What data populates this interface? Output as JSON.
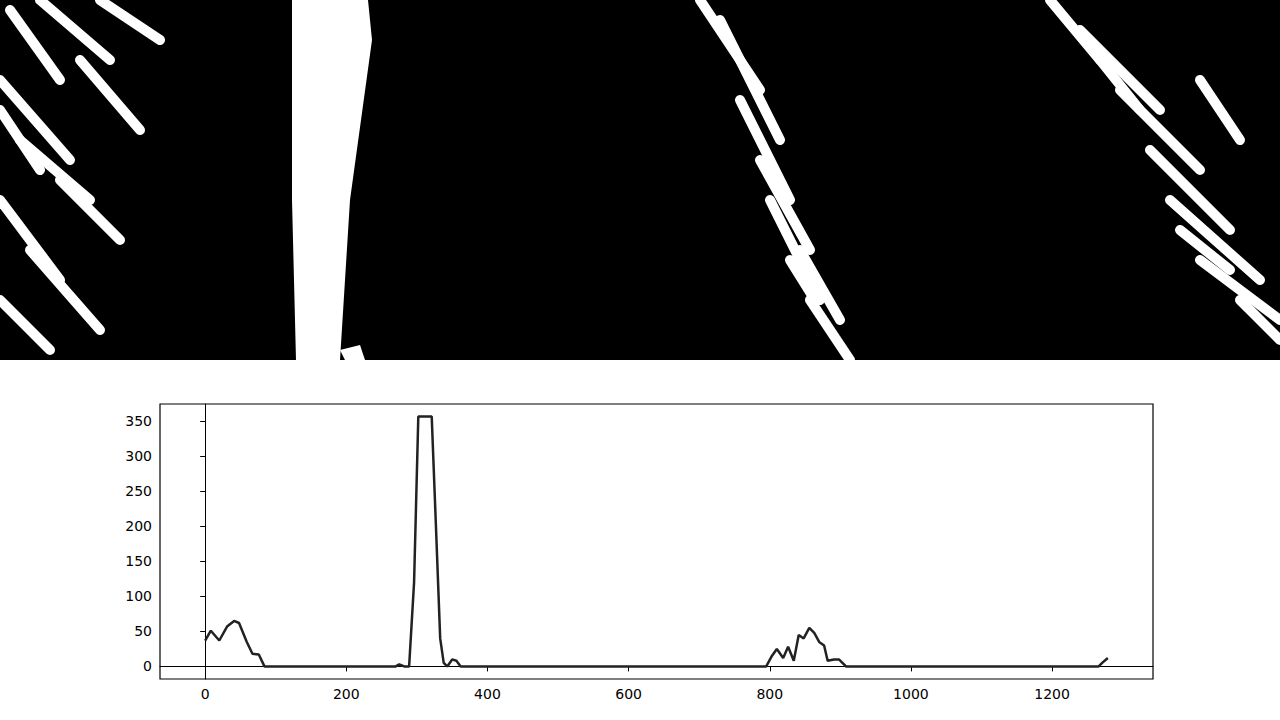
{
  "chart_data": {
    "type": "line",
    "color": "#222222",
    "x": [
      0,
      8,
      20,
      31,
      41,
      48,
      59,
      67,
      76,
      84,
      270,
      275,
      282,
      289,
      296,
      302,
      321,
      327,
      333,
      338,
      343,
      350,
      356,
      362,
      795,
      803,
      810,
      819,
      826,
      834,
      841,
      848,
      856,
      863,
      870,
      877,
      882,
      891,
      898,
      908,
      1266,
      1271,
      1279
    ],
    "values": [
      37,
      51,
      37,
      57,
      65,
      62,
      35,
      18,
      17,
      0,
      0,
      3,
      0,
      0,
      120,
      357,
      357,
      200,
      40,
      5,
      0,
      10,
      8,
      0,
      0,
      15,
      25,
      12,
      28,
      8,
      45,
      40,
      55,
      48,
      35,
      30,
      8,
      10,
      10,
      0,
      0,
      5,
      12
    ],
    "xlim": [
      -64,
      1343
    ],
    "xticks": [
      0,
      200,
      400,
      600,
      800,
      1000,
      1200
    ],
    "ylim": [
      -18,
      375
    ],
    "yticks": [
      0,
      50,
      100,
      150,
      200,
      250,
      300,
      350
    ],
    "grid": false
  }
}
